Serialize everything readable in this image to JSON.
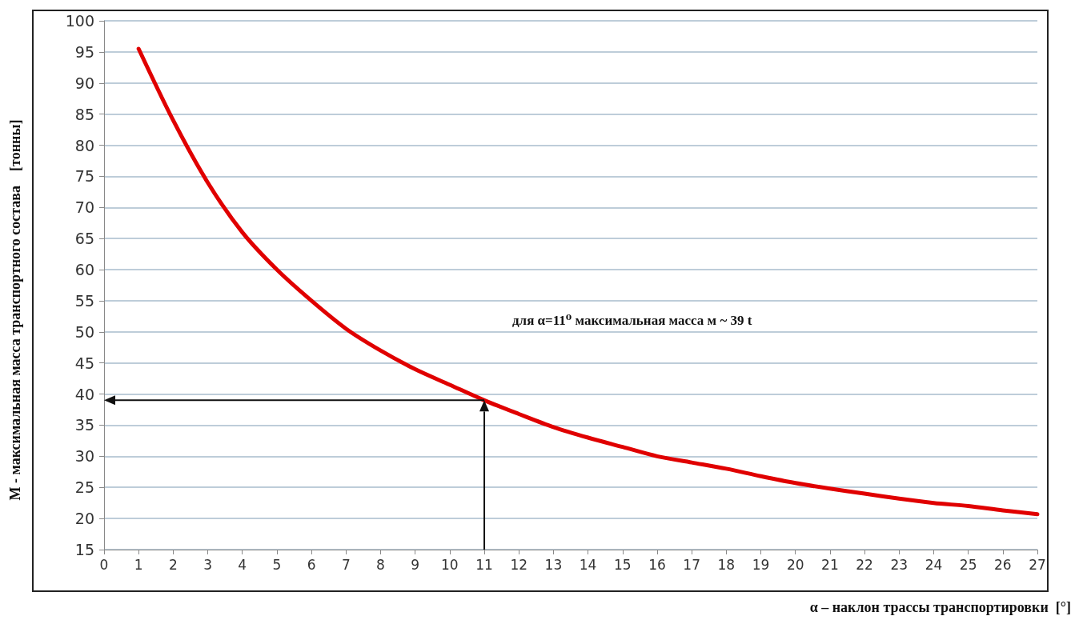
{
  "chart_data": {
    "type": "line",
    "xlabel": "α – наклон трассы транспортировки  [°]",
    "ylabel": "М - максимальная масса транспортного состава    [тонны]",
    "x": [
      1,
      2,
      3,
      4,
      5,
      6,
      7,
      8,
      9,
      10,
      11,
      12,
      13,
      14,
      15,
      16,
      17,
      18,
      19,
      20,
      21,
      22,
      23,
      24,
      25,
      26,
      27
    ],
    "series": [
      {
        "color": "#e00000",
        "values": [
          95.5,
          84,
          74,
          66,
          60,
          55,
          50.5,
          47,
          44,
          41.5,
          39,
          36.8,
          34.7,
          33,
          31.5,
          30,
          29,
          28,
          26.8,
          25.7,
          24.8,
          24,
          23.2,
          22.5,
          22,
          21.3,
          20.7
        ]
      }
    ],
    "xlim": [
      0,
      27
    ],
    "xticks": [
      0,
      1,
      2,
      3,
      4,
      5,
      6,
      7,
      8,
      9,
      10,
      11,
      12,
      13,
      14,
      15,
      16,
      17,
      18,
      19,
      20,
      21,
      22,
      23,
      24,
      25,
      26,
      27
    ],
    "ylim": [
      15,
      100
    ],
    "yticks": [
      15,
      20,
      25,
      30,
      35,
      40,
      45,
      50,
      55,
      60,
      65,
      70,
      75,
      80,
      85,
      90,
      95,
      100
    ],
    "grid": "y",
    "marker": "none",
    "line_style": "solid",
    "ref_lines": [
      {
        "axis": "x",
        "value": 11,
        "color": "#111111"
      },
      {
        "axis": "y",
        "value": 39,
        "color": "#111111"
      }
    ],
    "annotations": [
      "для α=11⁰ максимальная масса м ~ 39 t"
    ]
  }
}
